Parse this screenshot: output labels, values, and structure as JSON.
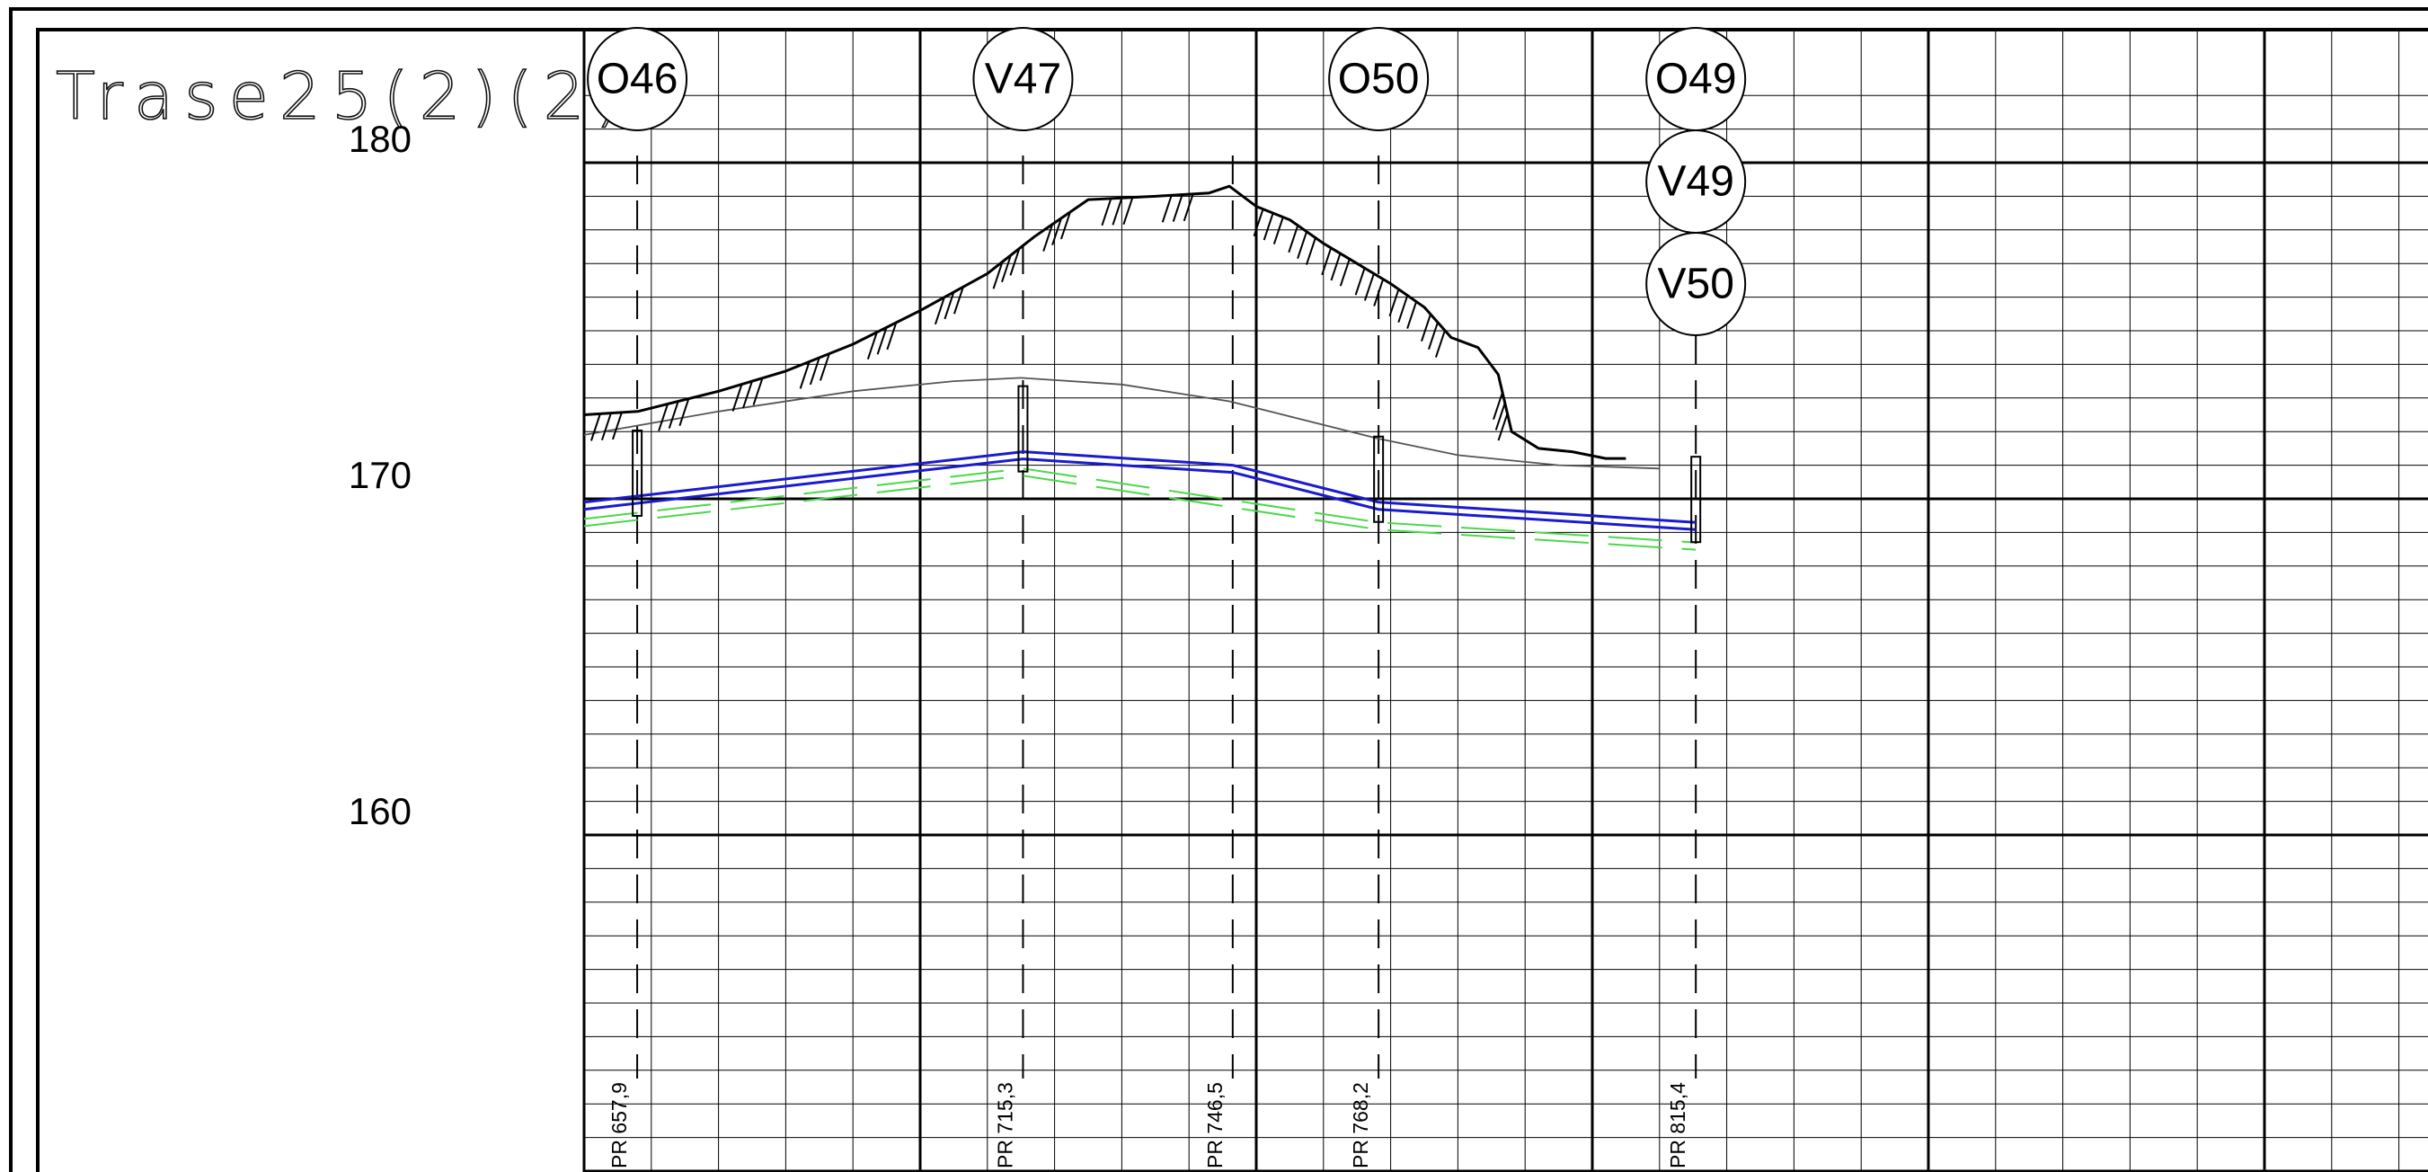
{
  "title": "Trase25(2)(2)",
  "elevation_axis": [
    {
      "value": 180,
      "label": "180"
    },
    {
      "value": 170,
      "label": "170"
    },
    {
      "value": 160,
      "label": "160"
    }
  ],
  "node_markers": [
    {
      "labels": [
        "O46"
      ],
      "station": 657.9
    },
    {
      "labels": [
        "V47"
      ],
      "station": 715.3
    },
    {
      "labels": [
        "O50"
      ],
      "station": 768.2
    },
    {
      "labels": [
        "O49",
        "V49",
        "V50"
      ],
      "station": 815.4
    }
  ],
  "station_labels": [
    {
      "text": "PR 657,9",
      "station": 657.9
    },
    {
      "text": "PR 715,3",
      "station": 715.3
    },
    {
      "text": "PR 746,5",
      "station": 746.5
    },
    {
      "text": "PR 768,2",
      "station": 768.2
    },
    {
      "text": "PR 815,4",
      "station": 815.4
    }
  ],
  "profiles": {
    "terrain": {
      "color": "#000000",
      "points": [
        [
          650,
          172.5
        ],
        [
          658,
          172.6
        ],
        [
          670,
          173.2
        ],
        [
          680,
          173.8
        ],
        [
          690,
          174.6
        ],
        [
          700,
          175.6
        ],
        [
          710,
          176.7
        ],
        [
          717,
          177.8
        ],
        [
          725,
          178.9
        ],
        [
          735,
          179.0
        ],
        [
          743,
          179.1
        ],
        [
          746,
          179.3
        ],
        [
          750,
          178.7
        ],
        [
          755,
          178.3
        ],
        [
          760,
          177.6
        ],
        [
          765,
          177.0
        ],
        [
          770,
          176.4
        ],
        [
          775,
          175.7
        ],
        [
          779,
          174.8
        ],
        [
          783,
          174.5
        ],
        [
          786,
          173.7
        ],
        [
          788,
          172.0
        ],
        [
          792,
          171.5
        ],
        [
          797,
          171.4
        ],
        [
          802,
          171.2
        ],
        [
          805,
          171.2
        ]
      ]
    },
    "reference_line": {
      "color": "#555555",
      "points": [
        [
          650,
          171.9
        ],
        [
          670,
          172.6
        ],
        [
          690,
          173.2
        ],
        [
          705,
          173.5
        ],
        [
          715,
          173.6
        ],
        [
          730,
          173.4
        ],
        [
          746,
          172.9
        ],
        [
          760,
          172.2
        ],
        [
          768,
          171.8
        ],
        [
          780,
          171.3
        ],
        [
          795,
          171.0
        ],
        [
          810,
          170.9
        ]
      ]
    },
    "pipe": {
      "color": "#1a1ad0",
      "points": [
        [
          650,
          169.9
        ],
        [
          715.3,
          171.4
        ],
        [
          746.5,
          171.0
        ],
        [
          768.2,
          169.9
        ],
        [
          815.4,
          169.3
        ]
      ]
    },
    "pipe_bottom": {
      "color": "#4ad84a",
      "points": [
        [
          650,
          169.4
        ],
        [
          715.3,
          170.9
        ],
        [
          768.2,
          169.3
        ],
        [
          815.4,
          168.7
        ]
      ]
    }
  }
}
